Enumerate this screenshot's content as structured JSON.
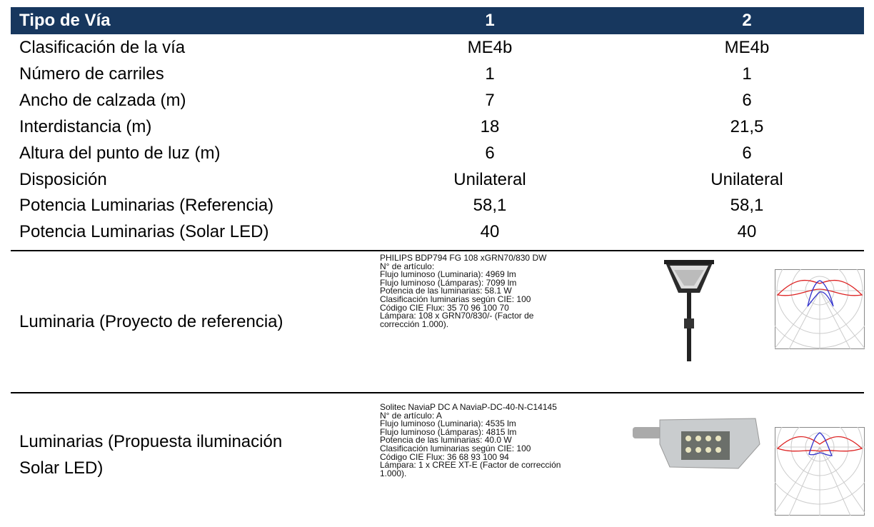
{
  "table": {
    "header": [
      "Tipo de Vía",
      "1",
      "2"
    ],
    "rows": [
      [
        "Clasificación de la vía",
        "ME4b",
        "ME4b"
      ],
      [
        "Número de carriles",
        "1",
        "1"
      ],
      [
        "Ancho de calzada (m)",
        "7",
        "6"
      ],
      [
        "Interdistancia (m)",
        "18",
        "21,5"
      ],
      [
        "Altura del punto de luz (m)",
        "6",
        "6"
      ],
      [
        "Disposición",
        "Unilateral",
        "Unilateral"
      ],
      [
        "Potencia Luminarias (Referencia)",
        "58,1",
        "58,1"
      ],
      [
        "Potencia Luminarias (Solar LED)",
        "40",
        "40"
      ]
    ],
    "luminaires": [
      {
        "label_lines": [
          "Luminaria (Proyecto de referencia)"
        ],
        "description": [
          "PHILIPS BDP794 FG 108 xGRN70/830 DW",
          "N° de artículo:",
          "Flujo luminoso (Luminaria): 4969 lm",
          "Flujo luminoso (Lámparas): 7099 lm",
          "Potencia de las luminarias: 58.1 W",
          "Clasificación luminarias según CIE: 100",
          "Código CIE Flux: 35  70  96  100  70",
          "Lámpara: 108 x GRN70/830/- (Factor de",
          "corrección 1.000)."
        ]
      },
      {
        "label_lines": [
          "Luminarias (Propuesta iluminación",
          "Solar LED)"
        ],
        "description": [
          "Solitec NaviaP DC A NaviaP-DC-40-N-C14145",
          "N° de artículo: A",
          "Flujo luminoso (Luminaria): 4535 lm",
          "Flujo luminoso (Lámparas): 4815 lm",
          "Potencia de las luminarias: 40.0 W",
          "Clasificación luminarias según CIE: 100",
          "Código CIE Flux: 36  68  93  100  94",
          "Lámpara: 1 x CREE XT-E (Factor de corrección",
          "1.000)."
        ]
      }
    ]
  }
}
